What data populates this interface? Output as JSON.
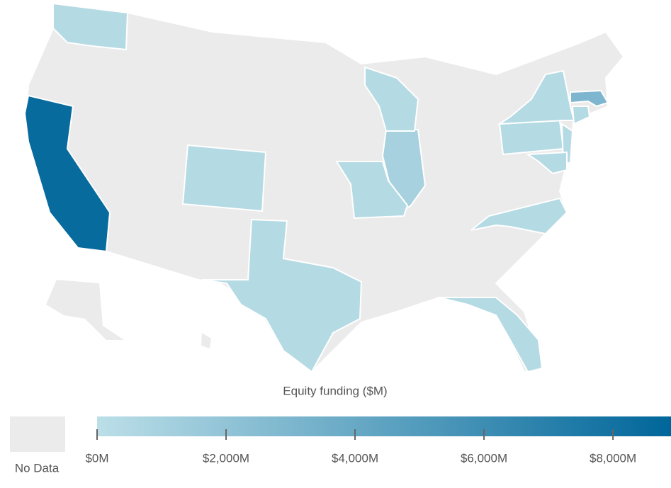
{
  "chart_data": {
    "type": "choropleth",
    "legend_title": "Equity funding ($M)",
    "no_data_label": "No Data",
    "no_data_color": "#ebebeb",
    "colorscale": [
      "#bcdfe8",
      "#00669a"
    ],
    "colorlim": [
      0,
      8900
    ],
    "ticks": [
      {
        "value": 0,
        "label": "$0M"
      },
      {
        "value": 2000,
        "label": "$2,000M"
      },
      {
        "value": 4000,
        "label": "$4,000M"
      },
      {
        "value": 6000,
        "label": "$6,000M"
      },
      {
        "value": 8000,
        "label": "$8,000M"
      }
    ],
    "values": [
      8500,
      3000,
      1000,
      400,
      400,
      400,
      400,
      400,
      400,
      400,
      400,
      400,
      400,
      400,
      400
    ]
  }
}
